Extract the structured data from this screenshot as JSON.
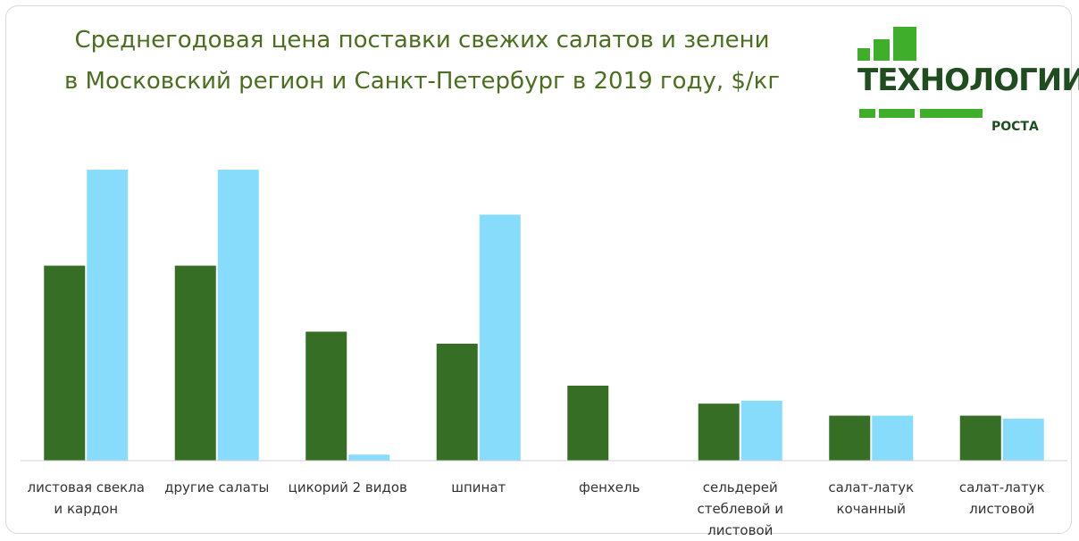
{
  "chart_data": {
    "type": "bar",
    "title": [
      "Среднегодовая цена поставки свежих салатов и зелени",
      "в Московский регион и Санкт-Петербург в 2019 году, $/кг"
    ],
    "logo": {
      "text": "ТЕХНОЛОГИИ",
      "subtext": "РОСТА"
    },
    "categories": [
      "листовая свекла и кардон",
      "другие салаты",
      "цикорий 2 видов",
      "шпинат",
      "фенхель",
      "сельдерей стеблевой и листовой",
      "салат-латук кочанный",
      "салат-латук листовой"
    ],
    "series": [
      {
        "color": "#376e25",
        "values": [
          6.5,
          6.5,
          4.3,
          3.9,
          2.5,
          1.9,
          1.5,
          1.5
        ]
      },
      {
        "color": "#87dcfb",
        "values": [
          9.7,
          9.7,
          0.2,
          8.2,
          0,
          2.0,
          1.5,
          1.4
        ]
      }
    ],
    "ylim": [
      0,
      10
    ]
  }
}
